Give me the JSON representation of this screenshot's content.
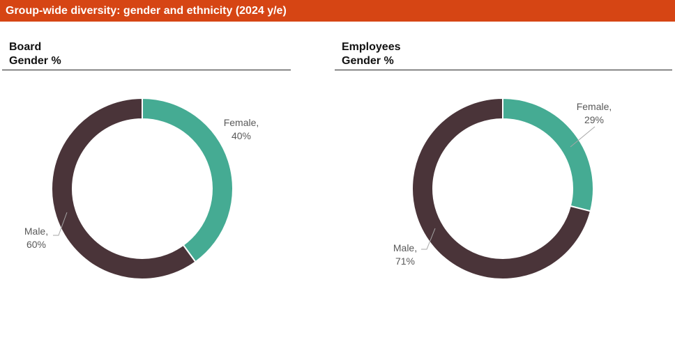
{
  "header": {
    "title": "Group-wide diversity: gender and ethnicity (2024 y/e)"
  },
  "colors": {
    "banner": "#d64514",
    "female": "#45ab93",
    "male": "#4a3439",
    "label": "#595959"
  },
  "chart_data": [
    {
      "type": "pie",
      "style": "donut",
      "title": "Board",
      "subtitle": "Gender %",
      "categories": [
        "Female",
        "Male"
      ],
      "values": [
        40,
        60
      ],
      "labels": [
        {
          "name": "Female,",
          "value": "40%"
        },
        {
          "name": "Male,",
          "value": "60%"
        }
      ]
    },
    {
      "type": "pie",
      "style": "donut",
      "title": "Employees",
      "subtitle": "Gender %",
      "categories": [
        "Female",
        "Male"
      ],
      "values": [
        29,
        71
      ],
      "labels": [
        {
          "name": "Female,",
          "value": "29%"
        },
        {
          "name": "Male,",
          "value": "71%"
        }
      ]
    }
  ]
}
